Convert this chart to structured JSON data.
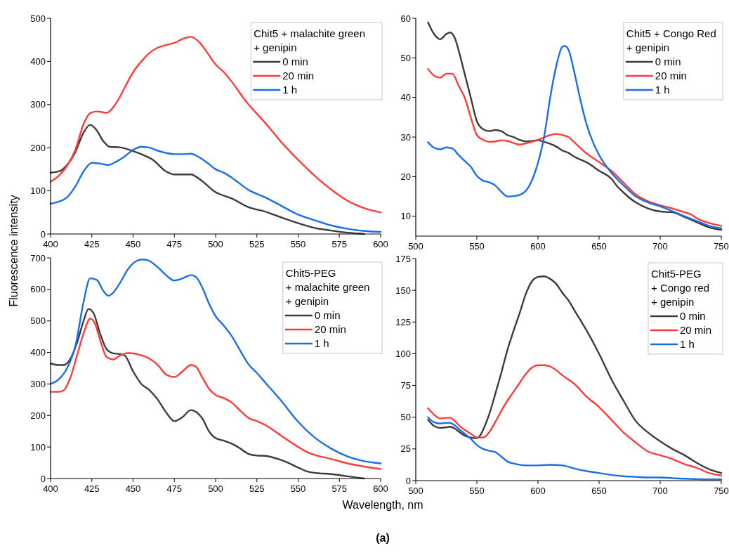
{
  "chart_data": [
    {
      "type": "line",
      "legend_title": "Chit5 + malachite green\n+ genipin",
      "legend": "top right",
      "xlim": [
        400,
        600
      ],
      "xticks": [
        400,
        425,
        450,
        475,
        500,
        525,
        550,
        575,
        600
      ],
      "ylim": [
        0,
        500
      ],
      "yticks": [
        0,
        100,
        200,
        300,
        400,
        500
      ],
      "series": [
        {
          "name": "0 min",
          "color": "#3c3c3c",
          "x": [
            400,
            405,
            410,
            415,
            420,
            424,
            428,
            432,
            436,
            442,
            450,
            455,
            462,
            470,
            475,
            485,
            490,
            500,
            510,
            520,
            530,
            540,
            550,
            560,
            570,
            580,
            590
          ],
          "values": [
            142,
            145,
            160,
            190,
            235,
            253,
            240,
            215,
            202,
            201,
            192,
            185,
            172,
            145,
            138,
            138,
            128,
            97,
            82,
            62,
            52,
            38,
            25,
            14,
            8,
            3,
            0
          ]
        },
        {
          "name": "20 min",
          "color": "#ff3b3b",
          "x": [
            400,
            405,
            410,
            415,
            420,
            424,
            428,
            434,
            440,
            445,
            450,
            455,
            460,
            465,
            470,
            475,
            480,
            485,
            490,
            495,
            500,
            505,
            510,
            515,
            520,
            530,
            540,
            550,
            560,
            570,
            580,
            590,
            600
          ],
          "values": [
            121,
            135,
            158,
            195,
            255,
            280,
            284,
            281,
            305,
            340,
            375,
            400,
            420,
            432,
            438,
            443,
            452,
            457,
            445,
            420,
            393,
            375,
            352,
            325,
            300,
            258,
            212,
            172,
            135,
            103,
            77,
            60,
            50
          ]
        },
        {
          "name": "1 h",
          "color": "#1a6fe6",
          "x": [
            400,
            405,
            410,
            415,
            420,
            425,
            430,
            435,
            440,
            445,
            450,
            455,
            460,
            465,
            470,
            475,
            480,
            485,
            490,
            495,
            500,
            505,
            510,
            520,
            530,
            540,
            550,
            560,
            570,
            580,
            590,
            600
          ],
          "values": [
            70,
            75,
            85,
            110,
            145,
            165,
            163,
            160,
            168,
            180,
            195,
            202,
            200,
            193,
            188,
            185,
            185,
            186,
            178,
            165,
            150,
            142,
            130,
            102,
            85,
            65,
            45,
            32,
            20,
            12,
            7,
            5
          ]
        }
      ]
    },
    {
      "type": "line",
      "legend_title": "Chit5 + Congo Red\n+ genipin",
      "legend": "top right",
      "xlim": [
        500,
        750
      ],
      "xticks": [
        500,
        550,
        600,
        650,
        700,
        750
      ],
      "ylim": [
        5,
        60
      ],
      "yticks": [
        10,
        20,
        30,
        40,
        50,
        60
      ],
      "series": [
        {
          "name": "0 min",
          "color": "#3c3c3c",
          "x": [
            510,
            515,
            520,
            525,
            528,
            532,
            535,
            540,
            545,
            550,
            555,
            560,
            565,
            570,
            575,
            580,
            585,
            590,
            595,
            600,
            605,
            610,
            615,
            620,
            625,
            630,
            640,
            650,
            660,
            665,
            670,
            680,
            690,
            700,
            710,
            720,
            730,
            740,
            750
          ],
          "values": [
            59,
            56,
            54.7,
            56,
            56.4,
            55,
            52,
            46,
            40,
            34,
            32,
            31.5,
            31.8,
            31.5,
            30.5,
            30,
            29.3,
            28.9,
            29,
            29.2,
            28.8,
            28.3,
            27.6,
            26.6,
            26,
            25,
            23.6,
            21.5,
            19.5,
            17.5,
            16,
            13.5,
            12,
            11.2,
            11,
            9.8,
            8.5,
            7.2,
            6.6
          ]
        },
        {
          "name": "20 min",
          "color": "#ff3b3b",
          "x": [
            510,
            515,
            520,
            525,
            530,
            535,
            540,
            545,
            550,
            555,
            560,
            565,
            570,
            575,
            580,
            585,
            590,
            600,
            610,
            615,
            620,
            625,
            630,
            640,
            650,
            660,
            670,
            680,
            690,
            700,
            710,
            720,
            725,
            730,
            740,
            750
          ],
          "values": [
            47.2,
            45.5,
            45,
            46,
            46,
            43,
            40,
            35,
            30.5,
            29.3,
            28.8,
            28.9,
            29.2,
            29,
            28.5,
            28.1,
            28.4,
            29.3,
            30.5,
            30.8,
            30.5,
            30,
            28.6,
            25.8,
            23.7,
            21.5,
            18.5,
            15.5,
            13.8,
            12.8,
            12,
            11,
            10.5,
            9.5,
            8.3,
            7.6
          ]
        },
        {
          "name": "1 h",
          "color": "#1a6fe6",
          "x": [
            510,
            515,
            520,
            525,
            530,
            535,
            540,
            545,
            550,
            555,
            560,
            565,
            570,
            575,
            580,
            585,
            590,
            595,
            600,
            605,
            610,
            615,
            620,
            622,
            625,
            630,
            635,
            640,
            645,
            650,
            660,
            670,
            680,
            690,
            700,
            710,
            720,
            730,
            740,
            750
          ],
          "values": [
            28.7,
            27.3,
            26.9,
            27.4,
            27.1,
            25.5,
            24,
            22.5,
            20.2,
            19,
            18.6,
            17.8,
            16.2,
            15,
            15.1,
            15.4,
            16.4,
            19,
            23.5,
            30,
            40,
            48,
            52.8,
            53,
            52,
            46,
            39,
            33,
            28.7,
            25.5,
            21,
            17.8,
            15,
            13.5,
            12.5,
            11.3,
            10,
            8.8,
            7.6,
            7
          ]
        }
      ]
    },
    {
      "type": "line",
      "legend_title": "Chit5-PEG\n+ malachite green\n+ genipin",
      "legend": "top right",
      "xlabel": "Wavelength, nm",
      "ylabel": "Fluorescence intensity",
      "annotations": [
        "(a)"
      ],
      "xlim": [
        400,
        600
      ],
      "xticks": [
        400,
        425,
        450,
        475,
        500,
        525,
        550,
        575,
        600
      ],
      "ylim": [
        0,
        700
      ],
      "yticks": [
        0,
        100,
        200,
        300,
        400,
        500,
        600,
        700
      ],
      "series": [
        {
          "name": "0 min",
          "color": "#3c3c3c",
          "x": [
            400,
            405,
            408,
            412,
            416,
            420,
            423,
            426,
            430,
            434,
            438,
            442,
            445,
            450,
            455,
            460,
            465,
            470,
            475,
            480,
            485,
            488,
            492,
            496,
            500,
            505,
            510,
            515,
            520,
            525,
            530,
            540,
            550,
            555,
            560,
            570,
            580,
            590
          ],
          "values": [
            365,
            360,
            360,
            380,
            430,
            500,
            538,
            525,
            460,
            410,
            397,
            395,
            390,
            340,
            300,
            280,
            250,
            210,
            182,
            195,
            217,
            212,
            190,
            150,
            128,
            120,
            110,
            95,
            78,
            73,
            72,
            58,
            35,
            23,
            18,
            14,
            7,
            0
          ]
        },
        {
          "name": "20 min",
          "color": "#ff3b3b",
          "x": [
            400,
            405,
            408,
            412,
            416,
            420,
            424,
            427,
            430,
            434,
            438,
            442,
            447,
            452,
            460,
            465,
            470,
            475,
            480,
            485,
            488,
            492,
            496,
            500,
            505,
            510,
            515,
            520,
            525,
            530,
            540,
            550,
            555,
            560,
            570,
            580,
            590,
            600
          ],
          "values": [
            275,
            275,
            280,
            320,
            390,
            460,
            507,
            490,
            440,
            385,
            378,
            390,
            398,
            395,
            380,
            360,
            330,
            322,
            340,
            360,
            355,
            320,
            285,
            265,
            255,
            240,
            215,
            192,
            182,
            170,
            135,
            100,
            85,
            75,
            62,
            48,
            38,
            30
          ]
        },
        {
          "name": "1 h",
          "color": "#1a6fe6",
          "x": [
            400,
            405,
            410,
            415,
            420,
            424,
            428,
            432,
            435,
            438,
            442,
            447,
            452,
            456,
            460,
            465,
            470,
            475,
            480,
            485,
            488,
            492,
            496,
            500,
            505,
            510,
            515,
            520,
            525,
            530,
            540,
            550,
            560,
            570,
            580,
            590,
            600
          ],
          "values": [
            300,
            315,
            350,
            420,
            560,
            635,
            630,
            595,
            580,
            590,
            620,
            665,
            690,
            695,
            690,
            670,
            645,
            628,
            635,
            645,
            640,
            605,
            555,
            515,
            485,
            450,
            405,
            362,
            335,
            305,
            245,
            180,
            130,
            95,
            70,
            55,
            48
          ]
        }
      ]
    },
    {
      "type": "line",
      "legend_title": "Chit5-PEG\n+ Congo red\n+ genipin",
      "legend": "top right",
      "xlim": [
        500,
        750
      ],
      "xticks": [
        500,
        550,
        600,
        650,
        700,
        750
      ],
      "ylim": [
        0,
        175
      ],
      "yticks": [
        0,
        25,
        50,
        75,
        100,
        125,
        150,
        175
      ],
      "series": [
        {
          "name": "0 min",
          "color": "#3c3c3c",
          "x": [
            510,
            515,
            520,
            525,
            528,
            532,
            536,
            540,
            545,
            550,
            553,
            556,
            560,
            565,
            570,
            575,
            580,
            585,
            590,
            595,
            600,
            605,
            610,
            615,
            620,
            625,
            630,
            640,
            650,
            660,
            670,
            680,
            690,
            700,
            710,
            720,
            730,
            740,
            750
          ],
          "values": [
            48,
            43,
            41.5,
            42,
            42.5,
            41,
            38,
            35.5,
            34,
            33.5,
            36,
            42,
            52,
            68,
            85,
            103,
            118,
            132,
            147,
            157,
            160.5,
            161,
            159,
            155,
            148,
            142,
            134,
            118,
            100,
            80,
            63,
            47,
            38,
            31,
            25,
            20,
            14,
            9,
            6
          ]
        },
        {
          "name": "20 min",
          "color": "#ff3b3b",
          "x": [
            510,
            515,
            520,
            525,
            528,
            532,
            536,
            540,
            545,
            550,
            555,
            560,
            565,
            570,
            575,
            580,
            585,
            590,
            595,
            600,
            605,
            610,
            615,
            620,
            630,
            640,
            650,
            660,
            670,
            680,
            690,
            700,
            710,
            720,
            730,
            740,
            750
          ],
          "values": [
            57,
            52,
            49,
            49.5,
            49.5,
            47,
            43,
            40,
            37,
            34,
            34,
            38,
            46,
            55,
            63,
            70,
            77,
            84,
            89,
            91,
            91,
            90,
            87,
            83,
            76,
            66,
            58,
            48,
            38,
            30,
            23,
            20,
            17,
            13,
            10,
            6,
            4
          ]
        },
        {
          "name": "1 h",
          "color": "#1a6fe6",
          "x": [
            510,
            515,
            520,
            525,
            528,
            532,
            536,
            540,
            545,
            550,
            555,
            560,
            565,
            570,
            575,
            580,
            585,
            590,
            600,
            610,
            620,
            630,
            640,
            650,
            660,
            670,
            680,
            690,
            700,
            710,
            720,
            730,
            740,
            750
          ],
          "values": [
            50,
            46,
            45,
            45.5,
            45.5,
            43.5,
            40,
            37,
            33,
            28,
            25,
            23.5,
            22.5,
            19,
            15,
            13.5,
            12.5,
            12,
            12,
            12.5,
            12,
            9.5,
            7.5,
            6,
            4.5,
            3.5,
            3,
            2.5,
            2.5,
            2,
            1.5,
            1.2,
            1,
            1
          ]
        }
      ]
    }
  ]
}
